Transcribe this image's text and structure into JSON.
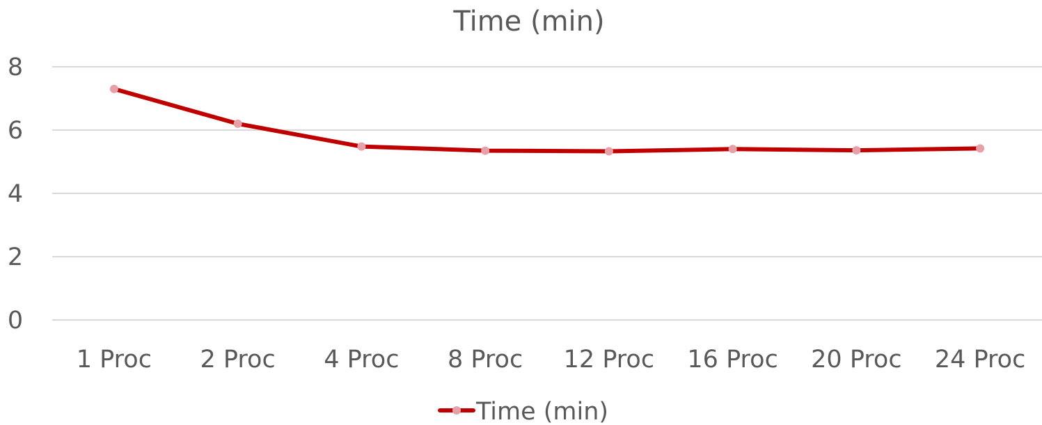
{
  "chart_data": {
    "type": "line",
    "title": "Time (min)",
    "xlabel": "",
    "ylabel": "",
    "categories": [
      "1 Proc",
      "2 Proc",
      "4 Proc",
      "8 Proc",
      "12 Proc",
      "16 Proc",
      "20 Proc",
      "24 Proc"
    ],
    "series": [
      {
        "name": "Time (min)",
        "values": [
          7.3,
          6.2,
          5.48,
          5.35,
          5.33,
          5.4,
          5.36,
          5.42
        ],
        "color": "#c00000",
        "marker_color": "#e8a0a8"
      }
    ],
    "ylim": [
      0,
      8
    ],
    "yticks": [
      0,
      2,
      4,
      6,
      8
    ],
    "grid": true,
    "legend": "bottom"
  }
}
